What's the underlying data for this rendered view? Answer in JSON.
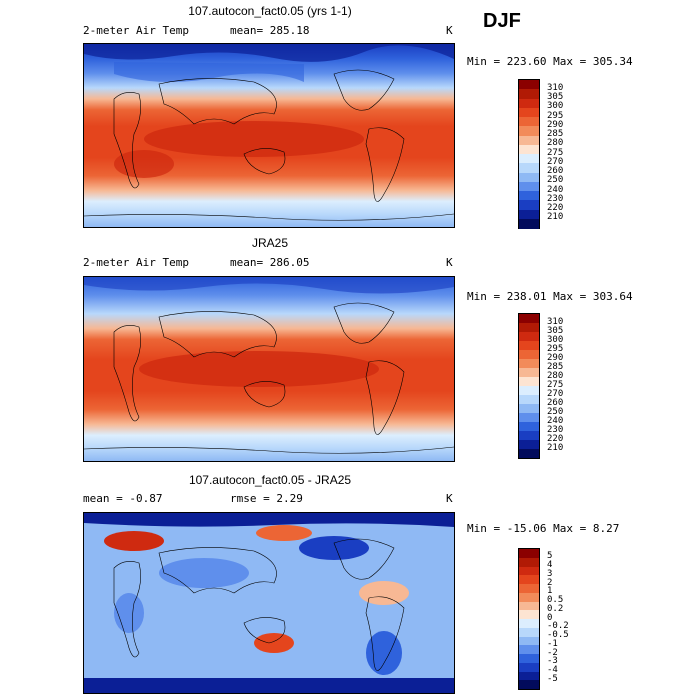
{
  "season": "DJF",
  "panels": [
    {
      "id": "model",
      "title": "107.autocon_fact0.05 (yrs 1-1)",
      "variable": "2-meter Air Temp",
      "mean_text": "mean= 285.18",
      "unit": "K",
      "minmax_text": "Min = 223.60 Max = 305.34",
      "colorbar": {
        "labels": [
          "310",
          "305",
          "300",
          "295",
          "290",
          "285",
          "280",
          "275",
          "270",
          "260",
          "250",
          "240",
          "230",
          "220",
          "210"
        ],
        "colors": [
          "#8b0000",
          "#b11a05",
          "#cf2a10",
          "#e4451d",
          "#ec6535",
          "#f28b5a",
          "#f7b894",
          "#fde4d2",
          "#dceefe",
          "#b8d8fb",
          "#8fb9f4",
          "#5f8fec",
          "#2f62dc",
          "#1a3ec2",
          "#0b1f96",
          "#020b5c"
        ]
      }
    },
    {
      "id": "obs",
      "title": "JRA25",
      "variable": "2-meter Air Temp",
      "mean_text": "mean= 286.05",
      "unit": "K",
      "minmax_text": "Min = 238.01 Max = 303.64",
      "colorbar": {
        "labels": [
          "310",
          "305",
          "300",
          "295",
          "290",
          "285",
          "280",
          "275",
          "270",
          "260",
          "250",
          "240",
          "230",
          "220",
          "210"
        ],
        "colors": [
          "#8b0000",
          "#b11a05",
          "#cf2a10",
          "#e4451d",
          "#ec6535",
          "#f28b5a",
          "#f7b894",
          "#fde4d2",
          "#dceefe",
          "#b8d8fb",
          "#8fb9f4",
          "#5f8fec",
          "#2f62dc",
          "#1a3ec2",
          "#0b1f96",
          "#020b5c"
        ]
      }
    },
    {
      "id": "diff",
      "title": "107.autocon_fact0.05 - JRA25",
      "mean_text": "mean =   -0.87",
      "rmse_text": "rmse =    2.29",
      "unit": "K",
      "minmax_text": "Min = -15.06 Max =   8.27",
      "colorbar": {
        "labels": [
          "5",
          "4",
          "3",
          "2",
          "1",
          "0.5",
          "0.2",
          "0",
          "-0.2",
          "-0.5",
          "-1",
          "-2",
          "-3",
          "-4",
          "-5"
        ],
        "colors": [
          "#8b0000",
          "#b11a05",
          "#cf2a10",
          "#e4451d",
          "#ec6535",
          "#f28b5a",
          "#f7b894",
          "#fde4d2",
          "#dceefe",
          "#b8d8fb",
          "#8fb9f4",
          "#5f8fec",
          "#2f62dc",
          "#1a3ec2",
          "#0b1f96",
          "#020b5c"
        ]
      }
    }
  ]
}
